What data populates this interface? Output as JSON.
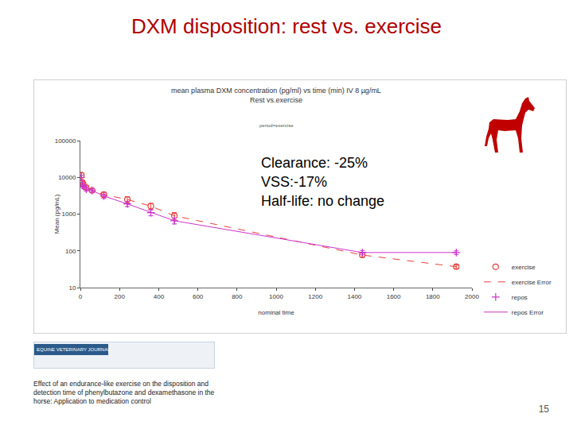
{
  "slide": {
    "title": "DXM disposition: rest vs. exercise",
    "callout": [
      "Clearance: -25%",
      "VSS:-17%",
      "Half-life: no change"
    ],
    "journal": "EQUINE VETERINARY JOURNAL",
    "citation": "Effect of an endurance-like exercise on the disposition and detection time of phenylbutazone and dexamethasone in the horse: Application to medication control",
    "page": "15"
  },
  "chart_data": {
    "type": "line",
    "title": "mean plasma DXM concentration (pg/ml) vs time (min) IV 8 µg/mL",
    "subtitle": "Rest vs.exercise",
    "annotations": [
      "period=exercise"
    ],
    "x_label": "nominal time",
    "y_label": "Mean (pg/mL)",
    "x": [
      5,
      10,
      15,
      30,
      60,
      120,
      240,
      360,
      480,
      1440,
      1920
    ],
    "series": [
      {
        "name": "exercise",
        "error_name": "exercise Error",
        "color": "#e8413c",
        "marker": "circle",
        "line_style": "dash",
        "values": [
          11500,
          7300,
          6400,
          5300,
          4400,
          3400,
          2500,
          1650,
          900,
          77,
          37
        ],
        "error": [
          1800,
          900,
          700,
          600,
          450,
          500,
          500,
          300,
          200,
          10,
          4
        ]
      },
      {
        "name": "repos",
        "error_name": "repos Error",
        "color": "#cc33cc",
        "marker": "plus",
        "line_style": "solid",
        "values": [
          10000,
          6300,
          5700,
          4800,
          4400,
          3100,
          1900,
          1100,
          660,
          90,
          90
        ],
        "error": [
          1500,
          800,
          700,
          600,
          450,
          400,
          300,
          200,
          120,
          12,
          10
        ]
      }
    ],
    "log": "y",
    "xlim": [
      0,
      2000
    ],
    "xticks": [
      0,
      200,
      400,
      600,
      800,
      1000,
      1200,
      1400,
      1600,
      1800,
      2000
    ],
    "ylim": [
      10,
      100000
    ],
    "yticks": [
      10,
      100,
      1000,
      10000,
      100000
    ],
    "grid": false,
    "legend": "right"
  }
}
